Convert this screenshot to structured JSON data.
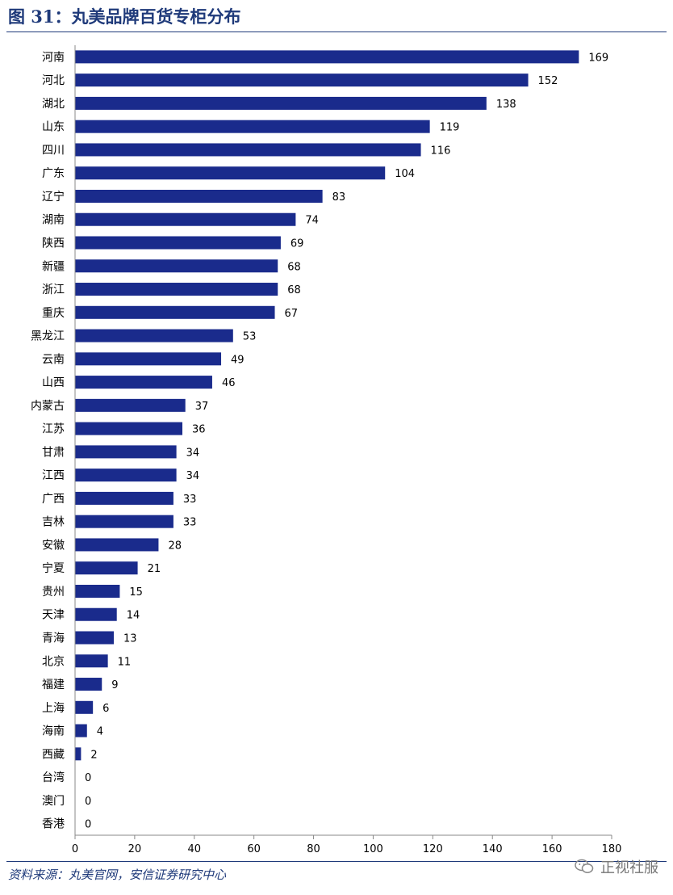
{
  "figure": {
    "title": "图 31：丸美品牌百货专柜分布",
    "source": "资料来源：丸美官网，安信证券研究中心",
    "watermark": "正视社服",
    "bar_color": "#1a2b8c",
    "title_color": "#1f3a7a",
    "watermark_icon": "wechat-icon"
  },
  "chart_data": {
    "type": "bar",
    "orientation": "horizontal",
    "title": "",
    "xlabel": "",
    "ylabel": "",
    "xlim": [
      0,
      180
    ],
    "xticks": [
      0,
      20,
      40,
      60,
      80,
      100,
      120,
      140,
      160,
      180
    ],
    "grid": false,
    "legend": "none",
    "data_labels": true,
    "categories": [
      "河南",
      "河北",
      "湖北",
      "山东",
      "四川",
      "广东",
      "辽宁",
      "湖南",
      "陕西",
      "新疆",
      "浙江",
      "重庆",
      "黑龙江",
      "云南",
      "山西",
      "内蒙古",
      "江苏",
      "甘肃",
      "江西",
      "广西",
      "吉林",
      "安徽",
      "宁夏",
      "贵州",
      "天津",
      "青海",
      "北京",
      "福建",
      "上海",
      "海南",
      "西藏",
      "台湾",
      "澳门",
      "香港"
    ],
    "values": [
      169,
      152,
      138,
      119,
      116,
      104,
      83,
      74,
      69,
      68,
      68,
      67,
      53,
      49,
      46,
      37,
      36,
      34,
      34,
      33,
      33,
      28,
      21,
      15,
      14,
      13,
      11,
      9,
      6,
      4,
      2,
      0,
      0,
      0
    ]
  }
}
